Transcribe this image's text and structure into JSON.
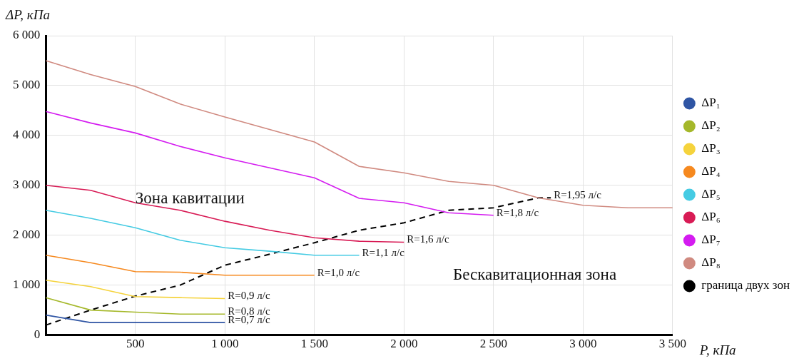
{
  "chart_data": {
    "type": "line",
    "xlabel": "P, кПа",
    "ylabel": "ΔP, кПа",
    "xlim": [
      0,
      3500
    ],
    "ylim": [
      0,
      6000
    ],
    "xticks": [
      {
        "value": 0,
        "label": null
      },
      {
        "value": 500,
        "label": "500"
      },
      {
        "value": 1000,
        "label": "1 000"
      },
      {
        "value": 1500,
        "label": "1 500"
      },
      {
        "value": 2000,
        "label": "2 000"
      },
      {
        "value": 2500,
        "label": "2 500"
      },
      {
        "value": 3000,
        "label": "3 000"
      },
      {
        "value": 3500,
        "label": "3 500"
      }
    ],
    "yticks": [
      {
        "value": 0,
        "label": "0"
      },
      {
        "value": 1000,
        "label": "1 000"
      },
      {
        "value": 2000,
        "label": "2 000"
      },
      {
        "value": 3000,
        "label": "3 000"
      },
      {
        "value": 4000,
        "label": "4 000"
      },
      {
        "value": 5000,
        "label": "5 000"
      },
      {
        "value": 6000,
        "label": "6 000"
      }
    ],
    "grid": true,
    "legend": "right",
    "marker": "none",
    "series": [
      {
        "name": "ΔP₁",
        "color": "#2f55a4",
        "x": [
          0,
          250,
          500,
          750,
          1000
        ],
        "values": [
          400,
          250,
          250,
          250,
          250
        ]
      },
      {
        "name": "ΔP₂",
        "color": "#a5b82a",
        "x": [
          0,
          250,
          500,
          750,
          1000
        ],
        "values": [
          750,
          500,
          460,
          420,
          420
        ]
      },
      {
        "name": "ΔP₃",
        "color": "#f5d33c",
        "x": [
          0,
          250,
          500,
          750,
          1000
        ],
        "values": [
          1100,
          970,
          770,
          750,
          730
        ]
      },
      {
        "name": "ΔP₄",
        "color": "#f6891f",
        "x": [
          0,
          250,
          500,
          750,
          1000,
          1250,
          1500
        ],
        "values": [
          1600,
          1450,
          1270,
          1260,
          1200,
          1200,
          1200
        ]
      },
      {
        "name": "ΔP₅",
        "color": "#45cbe3",
        "x": [
          0,
          250,
          500,
          750,
          1000,
          1250,
          1500,
          1750
        ],
        "values": [
          2500,
          2340,
          2150,
          1900,
          1750,
          1680,
          1600,
          1600
        ]
      },
      {
        "name": "ΔP₆",
        "color": "#d81b55",
        "x": [
          0,
          250,
          500,
          750,
          1000,
          1250,
          1500,
          1750,
          2000
        ],
        "values": [
          3000,
          2900,
          2650,
          2500,
          2280,
          2100,
          1950,
          1880,
          1860
        ]
      },
      {
        "name": "ΔP₇",
        "color": "#d41cf0",
        "x": [
          0,
          250,
          500,
          750,
          1000,
          1250,
          1500,
          1750,
          2000,
          2250,
          2500
        ],
        "values": [
          4480,
          4250,
          4050,
          3780,
          3550,
          3350,
          3150,
          2740,
          2650,
          2450,
          2400
        ]
      },
      {
        "name": "ΔP₈",
        "color": "#d08a80",
        "x": [
          0,
          250,
          500,
          750,
          1000,
          1250,
          1500,
          1750,
          2000,
          2250,
          2500,
          2750,
          3000,
          3250,
          3500
        ],
        "values": [
          5500,
          5220,
          4980,
          4630,
          4370,
          4120,
          3870,
          3380,
          3250,
          3080,
          3000,
          2750,
          2600,
          2550,
          2550
        ]
      },
      {
        "name": "граница двух зон",
        "color": "#000000",
        "line_style": "dashed",
        "x": [
          0,
          250,
          500,
          750,
          1000,
          1250,
          1500,
          1750,
          2000,
          2250,
          2500,
          2750,
          2820
        ],
        "values": [
          200,
          500,
          780,
          1000,
          1400,
          1620,
          1850,
          2100,
          2250,
          2500,
          2550,
          2750,
          2750
        ]
      }
    ],
    "annotations": [
      "Зона кавитации",
      "Бескавитационная зона",
      {
        "text": "R=0,7 л/с",
        "x": 1000,
        "y": 250
      },
      {
        "text": "R=0,8 л/с",
        "x": 1000,
        "y": 420
      },
      {
        "text": "R=0,9 л/с",
        "x": 1000,
        "y": 730
      },
      {
        "text": "R=1,0 л/с",
        "x": 1500,
        "y": 1200
      },
      {
        "text": "R=1,1 л/с",
        "x": 1750,
        "y": 1600
      },
      {
        "text": "R=1,6 л/с",
        "x": 2000,
        "y": 1860
      },
      {
        "text": "R=1,8 л/с",
        "x": 2500,
        "y": 2400
      },
      {
        "text": "R=1,95 л/с",
        "x": 2820,
        "y": 2750
      }
    ]
  }
}
